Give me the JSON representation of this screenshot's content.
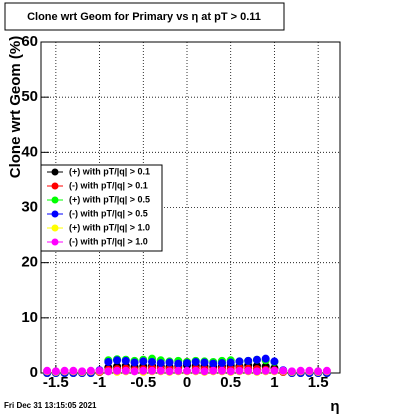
{
  "chart_data": {
    "type": "scatter",
    "title": "Clone wrt Geom for Primary vs η at pT > 0.11",
    "y_label": "Clone wrt Geom (%)",
    "x_label": "η",
    "timestamp": "Fri Dec 31 13:15:05 2021",
    "xlim": [
      -1.67,
      1.75
    ],
    "ylim": [
      0,
      60
    ],
    "xticks": [
      -1.5,
      -1,
      -0.5,
      0,
      0.5,
      1,
      1.5
    ],
    "yticks": [
      0,
      10,
      20,
      30,
      40,
      50,
      60
    ],
    "grid": true,
    "legend": "left",
    "x": [
      -1.6,
      -1.5,
      -1.4,
      -1.3,
      -1.2,
      -1.1,
      -1.0,
      -0.9,
      -0.8,
      -0.7,
      -0.6,
      -0.5,
      -0.4,
      -0.3,
      -0.2,
      -0.1,
      0,
      0.1,
      0.2,
      0.3,
      0.4,
      0.5,
      0.6,
      0.7,
      0.8,
      0.9,
      1.0,
      1.1,
      1.2,
      1.3,
      1.4,
      1.5,
      1.6
    ],
    "series": [
      {
        "name": "(+) with pT/|q| > 0.1",
        "color": "#000000",
        "values": [
          0.1,
          0.1,
          0.1,
          0.1,
          0.1,
          0.1,
          0.2,
          1.0,
          1.2,
          1.3,
          1.1,
          1.2,
          1.3,
          1.2,
          1.1,
          1.2,
          1.4,
          1.3,
          1.2,
          1.1,
          1.2,
          1.3,
          1.2,
          1.4,
          1.3,
          1.2,
          0.9,
          0.2,
          0.1,
          0.1,
          0.1,
          0.1,
          0.1
        ]
      },
      {
        "name": "(-) with pT/|q| > 0.1",
        "color": "#ff0000",
        "values": [
          0,
          0,
          0,
          0,
          0,
          0,
          0.2,
          0.6,
          0.7,
          0.8,
          0.6,
          0.7,
          0.9,
          0.8,
          0.7,
          0.9,
          2.0,
          0.8,
          0.7,
          0.6,
          0.8,
          0.7,
          0.9,
          0.8,
          0.7,
          0.6,
          0.5,
          0.2,
          0,
          0,
          0,
          0,
          0
        ]
      },
      {
        "name": "(+) with pT/|q| > 0.5",
        "color": "#00ff00",
        "values": [
          0,
          0,
          0,
          0,
          0,
          0,
          0.4,
          2.3,
          2.5,
          2.4,
          2.2,
          2.4,
          2.6,
          2.3,
          2.1,
          2.2,
          2.0,
          2.2,
          2.1,
          2.0,
          2.2,
          2.3,
          2.1,
          2.2,
          2.4,
          2.3,
          2.0,
          0.4,
          0,
          0,
          0,
          0,
          0
        ]
      },
      {
        "name": "(-) with pT/|q| > 0.5",
        "color": "#0000ff",
        "values": [
          0,
          0,
          0,
          0,
          0,
          0,
          0.5,
          2.0,
          2.3,
          2.2,
          1.9,
          2.1,
          2.0,
          1.8,
          1.9,
          1.7,
          1.8,
          2.0,
          1.9,
          1.7,
          1.8,
          1.9,
          2.1,
          2.2,
          2.4,
          2.6,
          2.1,
          0.5,
          0,
          0,
          0,
          0,
          0
        ]
      },
      {
        "name": "(+) with pT/|q| > 1.0",
        "color": "#ffff00",
        "values": [
          0.3,
          0.2,
          0.3,
          0.3,
          0.2,
          0.3,
          0.3,
          0.3,
          0.2,
          0.3,
          0.3,
          0.2,
          0.3,
          0.3,
          0.2,
          0.3,
          0.3,
          0.3,
          0.2,
          0.3,
          0.3,
          0.2,
          0.3,
          0.3,
          0.2,
          0.3,
          0.3,
          0.3,
          0.2,
          0.3,
          0.3,
          0.2,
          0.3
        ]
      },
      {
        "name": "(-) with pT/|q| > 1.0",
        "color": "#ff00ff",
        "values": [
          0.4,
          0.3,
          0.4,
          0.4,
          0.3,
          0.4,
          0.4,
          0.3,
          0.4,
          0.4,
          0.3,
          0.4,
          0.4,
          0.4,
          0.3,
          0.4,
          0.4,
          0.4,
          0.3,
          0.4,
          0.4,
          0.3,
          0.4,
          0.4,
          0.3,
          0.4,
          0.4,
          0.4,
          0.3,
          0.4,
          0.4,
          0.3,
          0.4
        ]
      }
    ]
  }
}
